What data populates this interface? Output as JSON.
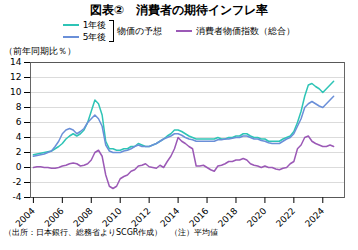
{
  "chart_data": {
    "type": "line",
    "title": "図表②　消費者の期待インフレ率",
    "y_label": "（前年同期比％）",
    "caption": "（出所：日本銀行、総務省よりSCGR作成）　（注）平均値",
    "annotations": [
      {
        "text": "物価の予想",
        "series": [
          "1年後",
          "5年後"
        ]
      }
    ],
    "x": [
      2004.0,
      2004.25,
      2004.5,
      2004.75,
      2005.0,
      2005.25,
      2005.5,
      2005.75,
      2006.0,
      2006.25,
      2006.5,
      2006.75,
      2007.0,
      2007.25,
      2007.5,
      2007.75,
      2008.0,
      2008.25,
      2008.5,
      2008.75,
      2009.0,
      2009.25,
      2009.5,
      2009.75,
      2010.0,
      2010.25,
      2010.5,
      2010.75,
      2011.0,
      2011.25,
      2011.5,
      2011.75,
      2012.0,
      2012.25,
      2012.5,
      2012.75,
      2013.0,
      2013.25,
      2013.5,
      2013.75,
      2014.0,
      2014.25,
      2014.5,
      2014.75,
      2015.0,
      2015.25,
      2015.5,
      2015.75,
      2016.0,
      2016.25,
      2016.5,
      2016.75,
      2017.0,
      2017.25,
      2017.5,
      2017.75,
      2018.0,
      2018.25,
      2018.5,
      2018.75,
      2019.0,
      2019.25,
      2019.5,
      2019.75,
      2020.0,
      2020.25,
      2020.5,
      2020.75,
      2021.0,
      2021.25,
      2021.5,
      2021.75,
      2022.0,
      2022.25,
      2022.5,
      2022.75,
      2023.0,
      2023.25,
      2023.5,
      2023.75,
      2024.0,
      2024.25,
      2024.5,
      2024.75
    ],
    "series": [
      {
        "name": "1年後",
        "color": "#2ec4b6",
        "values": [
          1.7,
          1.8,
          1.9,
          2.0,
          2.1,
          2.2,
          2.5,
          2.8,
          3.2,
          3.8,
          4.2,
          4.5,
          4.2,
          4.5,
          5.0,
          6.0,
          7.5,
          9.0,
          8.5,
          7.0,
          3.5,
          2.5,
          2.5,
          2.3,
          2.3,
          2.5,
          2.5,
          2.8,
          2.8,
          3.2,
          3.0,
          2.8,
          2.8,
          3.0,
          3.2,
          3.5,
          3.8,
          4.2,
          4.5,
          5.0,
          5.0,
          4.8,
          4.5,
          4.2,
          4.0,
          3.8,
          3.8,
          3.8,
          3.8,
          3.8,
          3.8,
          4.0,
          3.8,
          3.8,
          4.0,
          4.0,
          4.2,
          4.2,
          4.5,
          4.5,
          4.2,
          4.0,
          4.0,
          3.8,
          3.8,
          3.5,
          3.5,
          3.5,
          3.5,
          3.8,
          4.0,
          4.2,
          4.8,
          6.0,
          7.5,
          9.5,
          11.0,
          11.2,
          10.8,
          10.5,
          10.0,
          10.5,
          11.0,
          11.5
        ]
      },
      {
        "name": "5年後",
        "color": "#6a8fd8",
        "values": [
          1.5,
          1.6,
          1.7,
          1.8,
          2.0,
          2.2,
          2.8,
          3.5,
          4.5,
          5.0,
          5.2,
          5.0,
          4.5,
          4.8,
          5.2,
          6.0,
          6.5,
          7.0,
          6.5,
          5.5,
          3.0,
          2.2,
          2.0,
          2.0,
          2.0,
          2.2,
          2.3,
          2.5,
          2.8,
          3.0,
          2.8,
          2.8,
          2.8,
          3.0,
          3.2,
          3.5,
          3.8,
          4.0,
          4.2,
          4.5,
          4.5,
          4.3,
          4.0,
          3.8,
          3.7,
          3.5,
          3.5,
          3.5,
          3.5,
          3.5,
          3.5,
          3.7,
          3.7,
          3.8,
          3.8,
          3.9,
          4.0,
          4.0,
          4.2,
          4.2,
          4.0,
          3.8,
          3.8,
          3.6,
          3.5,
          3.3,
          3.2,
          3.2,
          3.2,
          3.5,
          3.8,
          4.0,
          4.5,
          5.5,
          6.5,
          8.0,
          8.5,
          8.8,
          8.5,
          8.2,
          8.0,
          8.5,
          9.0,
          9.5
        ]
      },
      {
        "name": "消費者物価指数（総合）",
        "color": "#9b59b6",
        "values": [
          0.0,
          0.1,
          0.1,
          0.0,
          0.0,
          -0.1,
          -0.1,
          0.0,
          0.2,
          0.3,
          0.5,
          0.6,
          0.5,
          0.2,
          0.3,
          0.5,
          1.0,
          2.0,
          2.3,
          1.5,
          -1.0,
          -2.5,
          -2.8,
          -2.5,
          -1.5,
          -1.2,
          -1.0,
          -0.5,
          -0.3,
          0.2,
          0.3,
          0.5,
          0.1,
          0.0,
          -0.1,
          0.3,
          0.0,
          0.8,
          1.5,
          2.5,
          4.0,
          3.5,
          3.2,
          2.8,
          2.5,
          0.2,
          0.2,
          0.3,
          0.0,
          -0.3,
          -0.5,
          0.2,
          0.3,
          0.5,
          0.8,
          0.8,
          1.0,
          1.0,
          1.2,
          1.0,
          0.5,
          0.3,
          0.2,
          0.0,
          0.2,
          0.0,
          0.0,
          -0.2,
          -0.3,
          -0.1,
          0.0,
          0.5,
          0.8,
          2.5,
          3.0,
          4.0,
          4.2,
          3.5,
          3.2,
          3.0,
          2.8,
          2.8,
          3.0,
          2.8
        ]
      }
    ],
    "xlim": [
      2003.8,
      2025.5
    ],
    "xticks": [
      2004,
      2006,
      2008,
      2010,
      2012,
      2014,
      2016,
      2018,
      2020,
      2022,
      2024
    ],
    "ylim": [
      -4,
      14
    ],
    "yticks": [
      -4,
      -2,
      0,
      2,
      4,
      6,
      8,
      10,
      12,
      14
    ],
    "grid": true,
    "legend": "top"
  }
}
